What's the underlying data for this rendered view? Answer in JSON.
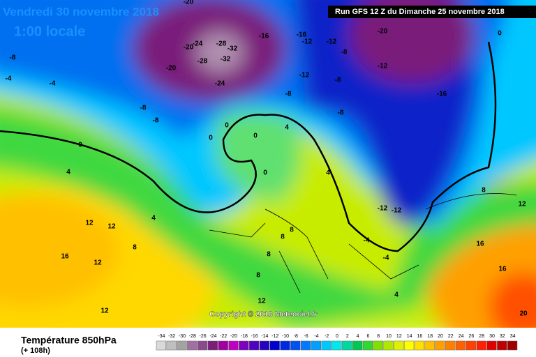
{
  "header": {
    "date": "Vendredi 30 novembre 2018",
    "time": "1:00 locale",
    "run": "Run GFS 12 Z du Dimanche 25 novembre 2018"
  },
  "copyright": "Copyright © 2018 Meteociel.fr",
  "legend": {
    "title": "Température 850hPa",
    "lead": "(+ 108h)",
    "scale": {
      "values": [
        -34,
        -32,
        -30,
        -28,
        -26,
        -24,
        -22,
        -20,
        -18,
        -16,
        -14,
        -12,
        -10,
        -8,
        -6,
        -4,
        -2,
        0,
        2,
        4,
        6,
        8,
        10,
        12,
        14,
        16,
        18,
        20,
        22,
        24,
        26,
        28,
        30,
        32,
        34
      ],
      "colors": [
        "#d9d9d9",
        "#bfbfbf",
        "#a3a3a3",
        "#a070a0",
        "#8c4a8c",
        "#7a1e7a",
        "#a000a0",
        "#c000c0",
        "#8000c0",
        "#5000c0",
        "#2800c0",
        "#0000d0",
        "#0028e0",
        "#0050f0",
        "#0078ff",
        "#00a0ff",
        "#00c8ff",
        "#00e8e8",
        "#00d8a0",
        "#00c850",
        "#30d830",
        "#80e000",
        "#b0e800",
        "#e0f000",
        "#ffff00",
        "#ffe000",
        "#ffc000",
        "#ffa000",
        "#ff8000",
        "#ff6000",
        "#ff4000",
        "#ff2000",
        "#e00000",
        "#c00000",
        "#a00000"
      ]
    }
  },
  "map_labels": [
    -20,
    -20,
    -24,
    -28,
    -32,
    -28,
    -32,
    -24,
    -20,
    -16,
    -16,
    -12,
    -12,
    -8,
    -20,
    0,
    -12,
    -16,
    -12,
    -8,
    -8,
    -8,
    -8,
    -8,
    -8,
    -4,
    -4,
    0,
    0,
    0,
    0,
    0,
    4,
    4,
    4,
    4,
    12,
    12,
    16,
    12,
    8,
    8,
    8,
    8,
    -12,
    -12,
    -4,
    -4,
    8,
    12,
    16,
    16,
    12,
    4,
    20,
    12,
    8
  ]
}
